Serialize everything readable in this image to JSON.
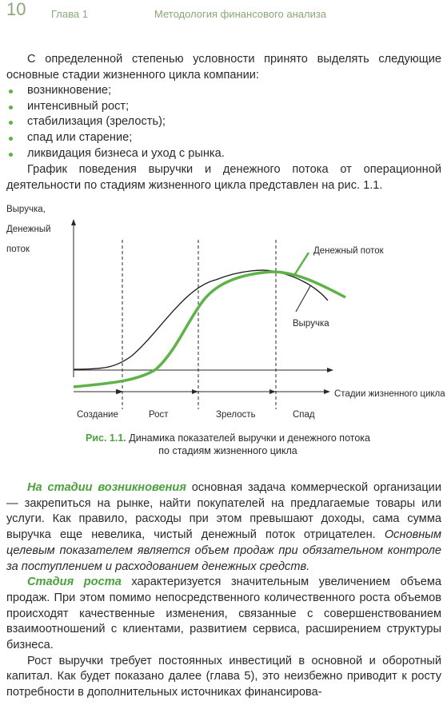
{
  "header": {
    "page_number": "10",
    "chapter": "Глава 1",
    "running_title": "Методология финансового анализа"
  },
  "intro": "С определенной степенью условности принято выделять следующие основные стадии жизненного цикла компании:",
  "stages_list": [
    "возникновение;",
    "интенсивный рост;",
    "стабилизация (зрелость);",
    "спад или старение;",
    "ликвидация бизнеса и уход с рынка."
  ],
  "figure_intro": "График поведения выручки и денежного потока от операционной деятельности по стадиям жизненного цикла представлен на рис. 1.1.",
  "figure": {
    "y_axis_label": [
      "Выручка,",
      "Денежный",
      "поток"
    ],
    "x_axis_label": "Стадии жизненного цикла",
    "curve_labels": [
      "Денежный поток",
      "Выручка"
    ],
    "stages": [
      "Создание",
      "Рост",
      "Зрелость",
      "Спад"
    ],
    "caption": {
      "label": "Рис. 1.1.",
      "text": "Динамика показателей выручки и денежного потока по стадиям жизненного цикла"
    }
  },
  "paragraphs": [
    [
      {
        "style": "term",
        "text": "На стадии возникновения"
      },
      {
        "style": "plain",
        "text": " основная задача коммерческой организации — закрепиться на рынке, найти покупателей на предлагаемые товары или услуги. Как правило, расходы при этом превышают доходы, сама сумма выручка еще невелика, чистый денежный поток отрицателен. "
      },
      {
        "style": "italic",
        "text": "Основным целевым показателем является объем продаж при обязательном контроле за поступлением и расходованием денежных средств."
      }
    ],
    [
      {
        "style": "term",
        "text": "Стадия роста"
      },
      {
        "style": "plain",
        "text": " характеризуется значительным увеличением объема продаж. При этом помимо непосредственного количественного роста объемов происходят качественные изменения, связанные с совершенствованием взаимоотношений с клиентами, развитием сервиса, расширением структуры бизнеса."
      }
    ],
    [
      {
        "style": "plain",
        "text": "Рост выручки требует постоянных инвестиций в основной и оборотный капитал. Как будет показано далее (глава 5), это неизбежно приводит к росту потребности в дополнительных источниках финансирова-"
      }
    ]
  ]
}
